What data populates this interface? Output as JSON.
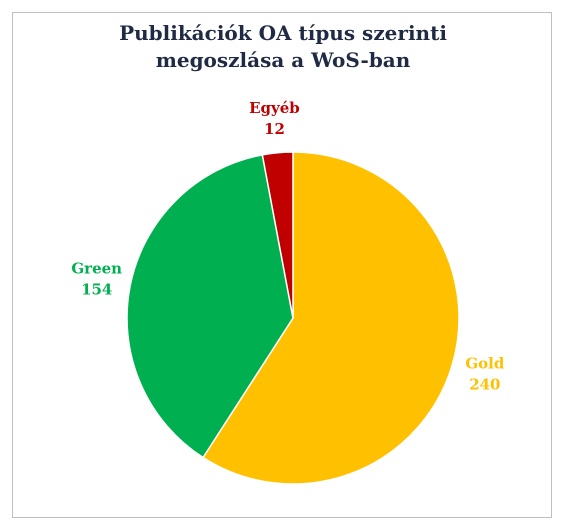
{
  "chart_data": {
    "type": "pie",
    "title": "Publikációk OA típus szerinti megoszlása a WoS-ban",
    "categories": [
      "Gold",
      "Green",
      "Egyéb"
    ],
    "values": [
      240,
      154,
      12
    ],
    "colors": [
      "#ffc000",
      "#00b050",
      "#c00000"
    ]
  }
}
